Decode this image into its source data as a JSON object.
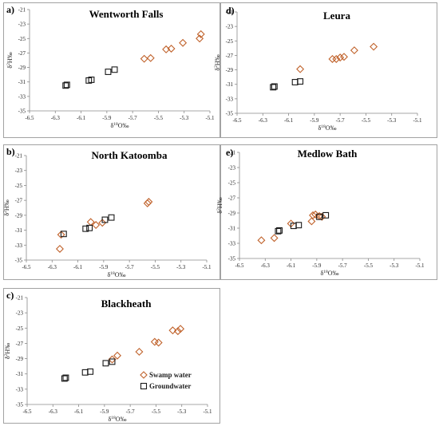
{
  "colors": {
    "swamp": "#c0622b",
    "groundwater": "#1a1a1a",
    "frame": "#8c8c8c"
  },
  "legend": {
    "swamp_label": "Swamp water",
    "groundwater_label": "Groundwater"
  },
  "chart_data": [
    {
      "type": "scatter",
      "label": "a)",
      "title": "Wentworth Falls",
      "xlabel": "δ18O‰",
      "ylabel": "δ2H‰",
      "xlim": [
        -6.5,
        -5.1
      ],
      "ylim": [
        -35,
        -21
      ],
      "xticks": [
        "-6.5",
        "-6.3",
        "-6.1",
        "-5.9",
        "-5.7",
        "-5.5",
        "-5.3",
        "-5.1"
      ],
      "yticks": [
        "-21",
        "-23",
        "-25",
        "-27",
        "-29",
        "-31",
        "-33",
        "-35"
      ],
      "series": [
        {
          "name": "Swamp water",
          "marker": "diamond",
          "points": [
            [
              -5.61,
              -27.8
            ],
            [
              -5.56,
              -27.7
            ],
            [
              -5.44,
              -26.5
            ],
            [
              -5.4,
              -26.4
            ],
            [
              -5.31,
              -25.6
            ],
            [
              -5.18,
              -25.0
            ],
            [
              -5.17,
              -24.4
            ]
          ]
        },
        {
          "name": "Groundwater",
          "marker": "square",
          "points": [
            [
              -6.22,
              -31.5
            ],
            [
              -6.21,
              -31.4
            ],
            [
              -6.04,
              -30.8
            ],
            [
              -6.02,
              -30.7
            ],
            [
              -5.89,
              -29.6
            ],
            [
              -5.84,
              -29.3
            ]
          ]
        }
      ]
    },
    {
      "type": "scatter",
      "label": "b)",
      "title": "North Katoomba",
      "xlabel": "δ18O‰",
      "ylabel": "δ2H‰",
      "xlim": [
        -6.5,
        -5.1
      ],
      "ylim": [
        -35,
        -21
      ],
      "xticks": [
        "-6.5",
        "-6.3",
        "-6.1",
        "-5.9",
        "-5.7",
        "-5.5",
        "-5.3",
        "-5.1"
      ],
      "yticks": [
        "-21",
        "-23",
        "-25",
        "-27",
        "-29",
        "-31",
        "-33",
        "-35"
      ],
      "series": [
        {
          "name": "Swamp water",
          "marker": "diamond",
          "points": [
            [
              -6.24,
              -33.5
            ],
            [
              -6.23,
              -31.6
            ],
            [
              -6.0,
              -29.9
            ],
            [
              -5.96,
              -30.3
            ],
            [
              -5.91,
              -30.0
            ],
            [
              -5.56,
              -27.4
            ],
            [
              -5.55,
              -27.2
            ]
          ]
        },
        {
          "name": "Groundwater",
          "marker": "square",
          "points": [
            [
              -6.21,
              -31.5
            ],
            [
              -6.04,
              -30.8
            ],
            [
              -6.01,
              -30.7
            ],
            [
              -5.89,
              -29.6
            ],
            [
              -5.84,
              -29.3
            ]
          ]
        }
      ]
    },
    {
      "type": "scatter",
      "label": "c)",
      "title": "Blackheath",
      "xlabel": "δ18O‰",
      "ylabel": "δ2H‰",
      "xlim": [
        -6.5,
        -5.1
      ],
      "ylim": [
        -35,
        -21
      ],
      "xticks": [
        "-6.5",
        "-6.3",
        "-6.1",
        "-5.9",
        "-5.7",
        "-5.5",
        "-5.3",
        "-5.1"
      ],
      "yticks": [
        "-21",
        "-23",
        "-25",
        "-27",
        "-29",
        "-31",
        "-33",
        "-35"
      ],
      "series": [
        {
          "name": "Swamp water",
          "marker": "diamond",
          "points": [
            [
              -5.84,
              -29.1
            ],
            [
              -5.8,
              -28.6
            ],
            [
              -5.63,
              -28.1
            ],
            [
              -5.51,
              -26.8
            ],
            [
              -5.48,
              -26.9
            ],
            [
              -5.37,
              -25.3
            ],
            [
              -5.33,
              -25.4
            ],
            [
              -5.31,
              -25.1
            ]
          ]
        },
        {
          "name": "Groundwater",
          "marker": "square",
          "points": [
            [
              -6.21,
              -31.6
            ],
            [
              -6.2,
              -31.5
            ],
            [
              -6.05,
              -30.8
            ],
            [
              -6.01,
              -30.7
            ],
            [
              -5.89,
              -29.6
            ],
            [
              -5.84,
              -29.4
            ]
          ]
        }
      ]
    },
    {
      "type": "scatter",
      "label": "d)",
      "title": "Leura",
      "xlabel": "δ18O‰",
      "ylabel": "δ2H‰",
      "xlim": [
        -6.5,
        -5.1
      ],
      "ylim": [
        -35,
        -21
      ],
      "xticks": [
        "-6.5",
        "-6.3",
        "-6.1",
        "-5.9",
        "-5.7",
        "-5.5",
        "-5.3",
        "-5.1"
      ],
      "yticks": [
        "-21",
        "-23",
        "-25",
        "-27",
        "-29",
        "-31",
        "-33",
        "-35"
      ],
      "series": [
        {
          "name": "Swamp water",
          "marker": "diamond",
          "points": [
            [
              -6.01,
              -28.9
            ],
            [
              -5.76,
              -27.5
            ],
            [
              -5.73,
              -27.5
            ],
            [
              -5.7,
              -27.3
            ],
            [
              -5.67,
              -27.2
            ],
            [
              -5.59,
              -26.3
            ],
            [
              -5.44,
              -25.8
            ]
          ]
        },
        {
          "name": "Groundwater",
          "marker": "square",
          "points": [
            [
              -6.22,
              -31.4
            ],
            [
              -6.21,
              -31.3
            ],
            [
              -6.05,
              -30.7
            ],
            [
              -6.01,
              -30.6
            ]
          ]
        }
      ]
    },
    {
      "type": "scatter",
      "label": "e)",
      "title": "Medlow Bath",
      "xlabel": "δ18O‰",
      "ylabel": "δ2H‰",
      "xlim": [
        -6.5,
        -5.1
      ],
      "ylim": [
        -35,
        -21
      ],
      "xticks": [
        "-6.5",
        "-6.3",
        "-6.1",
        "-5.9",
        "-5.7",
        "-5.5",
        "-5.3",
        "-5.1"
      ],
      "yticks": [
        "-21",
        "-23",
        "-25",
        "-27",
        "-29",
        "-31",
        "-33",
        "-35"
      ],
      "series": [
        {
          "name": "Swamp water",
          "marker": "diamond",
          "points": [
            [
              -6.33,
              -32.6
            ],
            [
              -6.23,
              -32.3
            ],
            [
              -6.1,
              -30.4
            ],
            [
              -5.94,
              -30.1
            ],
            [
              -5.93,
              -29.3
            ],
            [
              -5.91,
              -29.2
            ],
            [
              -5.88,
              -29.4
            ],
            [
              -5.86,
              -29.5
            ]
          ]
        },
        {
          "name": "Groundwater",
          "marker": "square",
          "points": [
            [
              -6.2,
              -31.4
            ],
            [
              -6.19,
              -31.3
            ],
            [
              -6.08,
              -30.7
            ],
            [
              -6.04,
              -30.6
            ],
            [
              -5.88,
              -29.5
            ],
            [
              -5.83,
              -29.3
            ]
          ]
        }
      ]
    }
  ]
}
